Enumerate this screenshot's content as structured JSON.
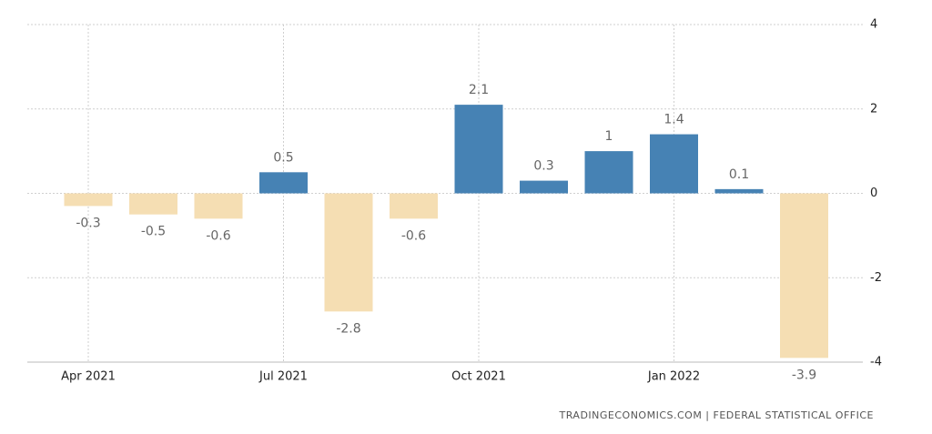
{
  "chart_data": {
    "type": "bar",
    "categories": [
      "Apr 2021",
      null,
      null,
      "Jul 2021",
      null,
      null,
      "Oct 2021",
      null,
      null,
      "Jan 2022",
      null,
      null
    ],
    "values": [
      -0.3,
      -0.5,
      -0.6,
      0.5,
      -2.8,
      -0.6,
      2.1,
      0.3,
      1,
      1.4,
      0.1,
      -3.9
    ],
    "positive_color": "#4682b4",
    "negative_color": "#f5deb3",
    "ylim": [
      -4,
      4
    ],
    "yticks": [
      -4,
      -2,
      0,
      2,
      4
    ],
    "grid": true,
    "source": "TRADINGECONOMICS.COM | FEDERAL STATISTICAL OFFICE"
  }
}
